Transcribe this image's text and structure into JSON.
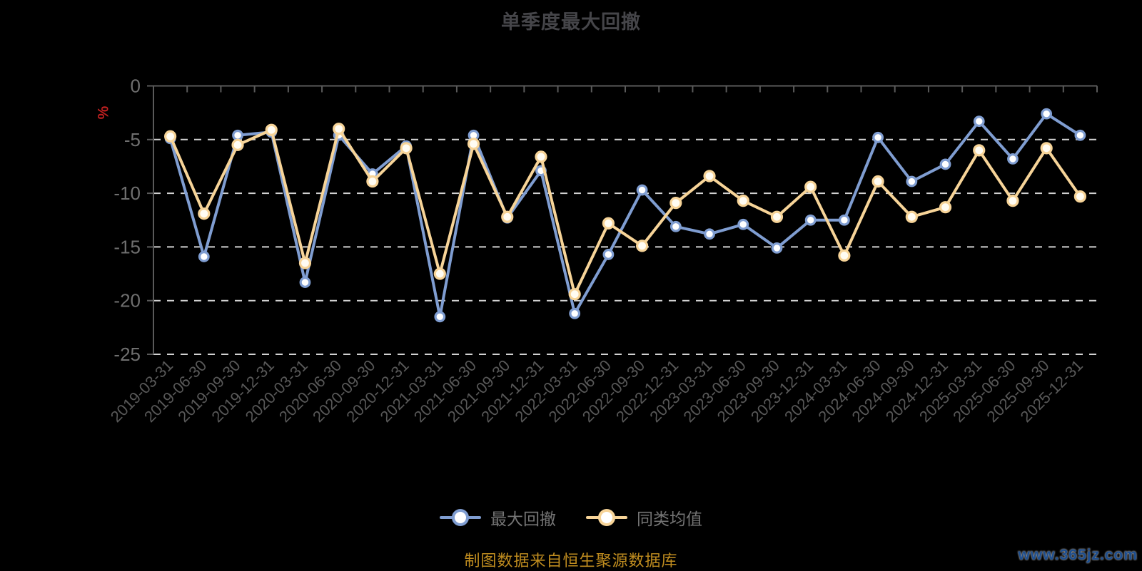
{
  "title": "单季度最大回撤",
  "footer": {
    "source_note": "制图数据来自恒生聚源数据库",
    "watermark": "www.365jz.com"
  },
  "colors": {
    "background": "#000000",
    "title": "#454549",
    "axis_line": "#5a5a5a",
    "axis_label": "#6f6f6f",
    "x_label": "#585858",
    "grid_line": "#d2d2d2",
    "series_drawdown": "#7f9dd1",
    "series_drawdown_fill": "#ffffff",
    "series_peer_avg": "#f7d498",
    "series_peer_avg_fill": "#fffcf3",
    "legend_text": "#747474",
    "unit_label": "#c02020",
    "source_note": "#bf8c1f",
    "watermark": "#1d4e8f",
    "watermark_outline": "#a0a0a0"
  },
  "chart_data": {
    "type": "line",
    "title": "单季度最大回撤",
    "x": [
      "2019-03-31",
      "2019-06-30",
      "2019-09-30",
      "2019-12-31",
      "2020-03-31",
      "2020-06-30",
      "2020-09-30",
      "2020-12-31",
      "2021-03-31",
      "2021-06-30",
      "2021-09-30",
      "2021-12-31",
      "2022-03-31",
      "2022-06-30",
      "2022-09-30",
      "2022-12-31",
      "2023-03-31",
      "2023-06-30",
      "2023-09-30",
      "2023-12-31",
      "2024-03-31",
      "2024-06-30",
      "2024-09-30",
      "2024-12-31",
      "2025-03-31",
      "2025-06-30",
      "2025-09-30",
      "2025-12-31"
    ],
    "series": [
      {
        "name": "最大回撤",
        "color_key": "series_drawdown",
        "values": [
          -4.9,
          -15.9,
          -4.6,
          -4.3,
          -18.3,
          -4.6,
          -8.2,
          -5.6,
          -21.5,
          -4.6,
          -12.3,
          -7.9,
          -21.2,
          -15.7,
          -9.7,
          -13.1,
          -13.8,
          -12.9,
          -15.1,
          -12.5,
          -12.5,
          -4.8,
          -8.9,
          -7.3,
          -3.3,
          -6.8,
          -2.6,
          -4.6
        ]
      },
      {
        "name": "同类均值",
        "color_key": "series_peer_avg",
        "values": [
          -4.7,
          -11.9,
          -5.5,
          -4.1,
          -16.5,
          -4.0,
          -8.9,
          -5.8,
          -17.5,
          -5.4,
          -12.2,
          -6.6,
          -19.4,
          -12.8,
          -14.9,
          -10.9,
          -8.4,
          -10.7,
          -12.2,
          -9.4,
          -15.8,
          -8.9,
          -12.2,
          -11.3,
          -6.0,
          -10.7,
          -5.8,
          -10.3
        ]
      }
    ],
    "ylabel": "%",
    "ylim": [
      -25,
      0
    ],
    "yticks": [
      0,
      -5,
      -10,
      -15,
      -20,
      -25
    ],
    "grid": "horizontal-dashed",
    "legend_position": "bottom",
    "x_label_rotation": 45
  }
}
